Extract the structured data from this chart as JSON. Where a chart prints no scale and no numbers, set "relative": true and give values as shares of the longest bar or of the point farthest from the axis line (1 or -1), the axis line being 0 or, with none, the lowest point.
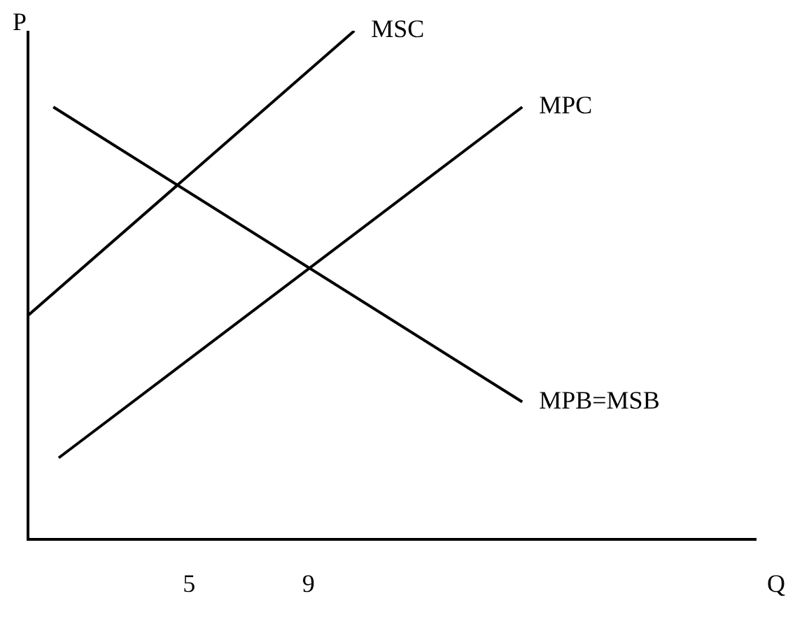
{
  "chart_data": {
    "type": "line",
    "xlabel": "Q",
    "ylabel": "P",
    "relative": true,
    "xlim": [
      -0.4,
      24
    ],
    "xticks": [
      5,
      9
    ],
    "grid": false,
    "legend": false,
    "marker": "none",
    "line_style": "solid",
    "series": [
      {
        "name": "MSC",
        "color": "#000000",
        "x": [
          -0.4,
          10.54
        ],
        "values": [
          0.44,
          1
        ]
      },
      {
        "name": "MPC",
        "color": "#000000",
        "x": [
          0.63,
          16.17
        ],
        "values": [
          0.16,
          0.85
        ]
      },
      {
        "name": "MPB=MSB",
        "color": "#000000",
        "x": [
          0.45,
          16.17
        ],
        "values": [
          0.85,
          0.27
        ]
      }
    ]
  }
}
